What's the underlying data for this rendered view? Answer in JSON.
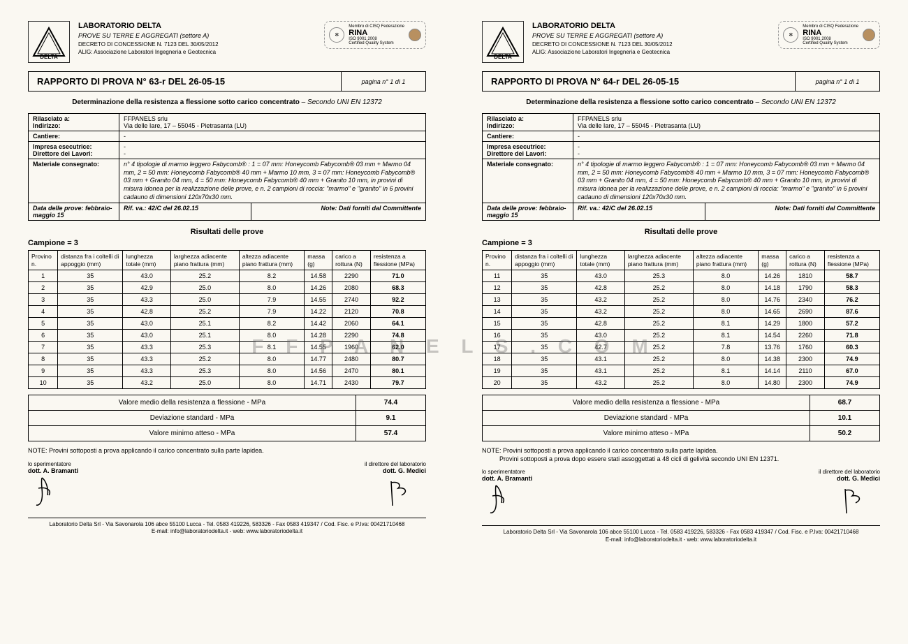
{
  "watermark": "F F P A N E L S . C O M",
  "lab": {
    "name": "LABORATORIO DELTA",
    "sub1": "PROVE SU TERRE E AGGREGATI (settore A)",
    "sub2": "DECRETO DI CONCESSIONE N. 7123 DEL 30/05/2012",
    "sub3": "ALIG: Associazione Laboratori Ingegneria e Geotecnica"
  },
  "cert": {
    "top": "Membro di CISQ Federazione",
    "name": "RINA",
    "iso": "ISO 9001 2008",
    "sub": "Certified Quality System"
  },
  "det_title_bold": "Determinazione della resistenza a flessione sotto carico concentrato",
  "det_title_ital": " – Secondo UNI EN 12372",
  "info": {
    "rilasciato_lbl": "Rilasciato a:",
    "rilasciato": "FFPANELS srlu",
    "indirizzo_lbl": "Indirizzo:",
    "indirizzo": "Via delle Iare, 17 – 55045 - Pietrasanta (LU)",
    "cantiere_lbl": "Cantiere:",
    "cantiere": "-",
    "impresa_lbl": "Impresa esecutrice:",
    "impresa": "-",
    "direttore_lbl": "Direttore dei Lavori:",
    "direttore": "-",
    "materiale_lbl": "Materiale consegnato:",
    "materiale": "n° 4 tipologie di marmo leggero Fabycomb® : 1 = 07 mm: Honeycomb Fabycomb® 03 mm + Marmo 04 mm, 2 = 50 mm: Honeycomb Fabycomb® 40 mm + Marmo 10 mm, 3 = 07 mm: Honeycomb Fabycomb® 03 mm + Granito 04 mm, 4 = 50 mm: Honeycomb Fabycomb® 40 mm + Granito 10 mm, in provini di misura idonea per la realizzazione delle prove, e n. 2 campioni di roccia: \"marmo\" e \"granito\" in 6 provini cadauno di dimensioni 120x70x30 mm.",
    "data_lbl": "Data delle prove: febbraio-maggio 15",
    "rif": "Rif. va.: 42/C del 26.02.15",
    "note_lbl": "Note: Dati forniti dal Committente"
  },
  "risultati_lbl": "Risultati delle prove",
  "campione_lbl": "Campione = 3",
  "columns": [
    "Provino n.",
    "distanza fra i coltelli di appoggio (mm)",
    "lunghezza totale (mm)",
    "larghezza adiacente piano frattura (mm)",
    "altezza adiacente piano frattura (mm)",
    "massa (g)",
    "carico a rottura (N)",
    "resistenza a flessione (MPa)"
  ],
  "summary_labels": [
    "Valore medio della resistenza a flessione - MPa",
    "Deviazione standard - MPa",
    "Valore minimo atteso - MPa"
  ],
  "sig": {
    "left_role": "lo sperimentatore",
    "left_name": "dott. A. Bramanti",
    "right_role": "il direttore del laboratorio",
    "right_name": "dott. G. Medici"
  },
  "footer1": "Laboratorio Delta Srl - Via Savonarola 106 abce 55100 Lucca - Tel. 0583 419226, 583326 -   Fax 0583  419347 / Cod. Fisc. e P.Iva: 00421710468",
  "footer2": "E-mail: info@laboratoriodelta.it - web: www.laboratoriodelta.it",
  "reports": [
    {
      "title": "RAPPORTO DI PROVA N°   63-r   DEL   26-05-15",
      "pagina": "pagina n° 1 di 1",
      "rows": [
        [
          "1",
          "35",
          "43.0",
          "25.2",
          "8.2",
          "14.58",
          "2290",
          "71.0"
        ],
        [
          "2",
          "35",
          "42.9",
          "25.0",
          "8.0",
          "14.26",
          "2080",
          "68.3"
        ],
        [
          "3",
          "35",
          "43.3",
          "25.0",
          "7.9",
          "14.55",
          "2740",
          "92.2"
        ],
        [
          "4",
          "35",
          "42.8",
          "25.2",
          "7.9",
          "14.22",
          "2120",
          "70.8"
        ],
        [
          "5",
          "35",
          "43.0",
          "25.1",
          "8.2",
          "14.42",
          "2060",
          "64.1"
        ],
        [
          "6",
          "35",
          "43.0",
          "25.1",
          "8.0",
          "14.28",
          "2290",
          "74.8"
        ],
        [
          "7",
          "35",
          "43.3",
          "25.3",
          "8.1",
          "14.55",
          "1960",
          "62.0"
        ],
        [
          "8",
          "35",
          "43.3",
          "25.2",
          "8.0",
          "14.77",
          "2480",
          "80.7"
        ],
        [
          "9",
          "35",
          "43.3",
          "25.3",
          "8.0",
          "14.56",
          "2470",
          "80.1"
        ],
        [
          "10",
          "35",
          "43.2",
          "25.0",
          "8.0",
          "14.71",
          "2430",
          "79.7"
        ]
      ],
      "summary": [
        "74.4",
        "9.1",
        "57.4"
      ],
      "note": "NOTE: Provini sottoposti a prova applicando il carico concentrato sulla parte lapidea."
    },
    {
      "title": "RAPPORTO DI PROVA N°   64-r   DEL   26-05-15",
      "pagina": "pagina n° 1 di 1",
      "rows": [
        [
          "11",
          "35",
          "43.0",
          "25.3",
          "8.0",
          "14.26",
          "1810",
          "58.7"
        ],
        [
          "12",
          "35",
          "42.8",
          "25.2",
          "8.0",
          "14.18",
          "1790",
          "58.3"
        ],
        [
          "13",
          "35",
          "43.2",
          "25.2",
          "8.0",
          "14.76",
          "2340",
          "76.2"
        ],
        [
          "14",
          "35",
          "43.2",
          "25.2",
          "8.0",
          "14.65",
          "2690",
          "87.6"
        ],
        [
          "15",
          "35",
          "42.8",
          "25.2",
          "8.1",
          "14.29",
          "1800",
          "57.2"
        ],
        [
          "16",
          "35",
          "43.0",
          "25.2",
          "8.1",
          "14.54",
          "2260",
          "71.8"
        ],
        [
          "17",
          "35",
          "42.7",
          "25.2",
          "7.8",
          "13.76",
          "1760",
          "60.3"
        ],
        [
          "18",
          "35",
          "43.1",
          "25.2",
          "8.0",
          "14.38",
          "2300",
          "74.9"
        ],
        [
          "19",
          "35",
          "43.1",
          "25.2",
          "8.1",
          "14.14",
          "2110",
          "67.0"
        ],
        [
          "20",
          "35",
          "43.2",
          "25.2",
          "8.0",
          "14.80",
          "2300",
          "74.9"
        ]
      ],
      "summary": [
        "68.7",
        "10.1",
        "50.2"
      ],
      "note": "NOTE: Provini sottoposti a prova applicando il carico concentrato sulla parte lapidea.\nProvini sottoposti a prova dopo essere stati assoggettati a 48 cicli di gelività secondo UNI EN 12371."
    }
  ]
}
